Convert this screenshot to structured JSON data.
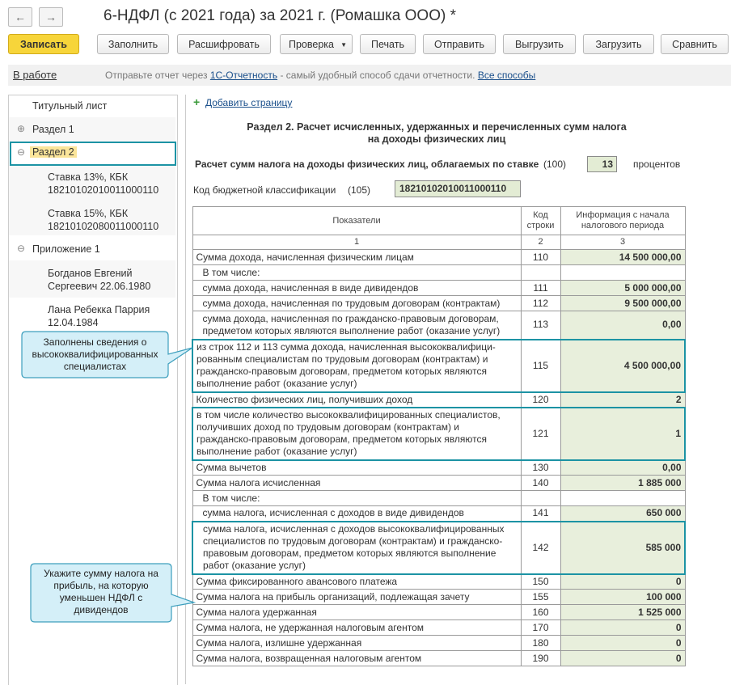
{
  "header": {
    "title": "6-НДФЛ (с 2021 года) за 2021 г. (Ромашка ООО) *"
  },
  "toolbar": {
    "buttons": [
      "Записать",
      "Заполнить",
      "Расшифровать",
      "Проверка",
      "Печать",
      "Отправить",
      "Выгрузить",
      "Загрузить",
      "Сравнить"
    ]
  },
  "infobar": {
    "status": "В работе",
    "text_before": "Отправьте отчет через",
    "link": "1С-Отчетность",
    "text_after": "- самый удобный способ сдачи отчетности.",
    "link_all": "Все способы"
  },
  "sidebar": {
    "items": [
      "Титульный лист",
      "Раздел 1",
      "Раздел 2",
      "Ставка 13%, КБК 18210102010011000110",
      "Ставка 15%, КБК 18210102080011000110",
      "Приложение 1",
      "Богданов Евгений Сергеевич 22.06.1980",
      "Лана Ребекка Паррия 12.04.1984"
    ]
  },
  "callouts": [
    "Заполнены сведения о\nвысококвалифицированных\nспециалистах",
    "Укажите сумму налога на\nприбыль, на которую\nуменьшен НДФЛ с\nдивидендов"
  ],
  "content": {
    "add_page": "Добавить страницу",
    "section_title": "Раздел 2. Расчет исчисленных, удержанных и перечисленных сумм налога\nна доходы физических лиц",
    "rate_label": "Расчет сумм налога на доходы физических лиц, облагаемых по ставке",
    "rate_code": "(100)",
    "rate_value": "13",
    "rate_unit": "процентов",
    "kbk_label": "Код бюджетной классификации",
    "kbk_code": "(105)",
    "kbk_value": "18210102010011000110"
  },
  "table": {
    "headers": [
      "Показатели",
      "Код\nстроки",
      "Информация с начала\nналогового периода"
    ],
    "numbers": [
      "1",
      "2",
      "3"
    ],
    "rows": [
      {
        "label": "Сумма дохода, начисленная физическим лицам",
        "code": "110",
        "value": "14 500 000,00"
      },
      {
        "label": "В том числе:"
      },
      {
        "label": "сумма дохода, начисленная в виде дивидендов",
        "code": "111",
        "value": "5 000 000,00"
      },
      {
        "label": "сумма дохода, начисленная по трудовым договорам (контрактам)",
        "code": "112",
        "value": "9 500 000,00"
      },
      {
        "label": "сумма дохода, начисленная по гражданско-правовым договорам,\nпредметом которых являются выполнение работ (оказание услуг)",
        "code": "113",
        "value": "0,00"
      },
      {
        "label": "из строк 112 и 113 сумма дохода, начисленная высококвалифици-\nрованным специалистам по трудовым договорам (контрактам) и\nгражданско-правовым договорам, предметом которых являются\nвыполнение работ (оказание услуг)",
        "code": "115",
        "value": "4 500 000,00"
      },
      {
        "label": "Количество физических лиц, получивших доход",
        "code": "120",
        "value": "2"
      },
      {
        "label": "в том числе количество высококвалифицированных специалистов,\nполучивших доход по трудовым договорам (контрактам) и\nгражданско-правовым договорам, предметом которых являются\nвыполнение работ (оказание услуг)",
        "code": "121",
        "value": "1"
      },
      {
        "label": "Сумма вычетов",
        "code": "130",
        "value": "0,00"
      },
      {
        "label": "Сумма налога исчисленная",
        "code": "140",
        "value": "1 885 000"
      },
      {
        "label": "В том числе:"
      },
      {
        "label": "сумма налога, исчисленная с доходов в виде дивидендов",
        "code": "141",
        "value": "650 000"
      },
      {
        "label": "сумма налога, исчисленная с доходов высококвалифицированных\nспециалистов по трудовым договорам (контрактам) и гражданско-\nправовым договорам, предметом которых являются выполнение\nработ (оказание услуг)",
        "code": "142",
        "value": "585 000"
      },
      {
        "label": "Сумма фиксированного авансового платежа",
        "code": "150",
        "value": "0"
      },
      {
        "label": "Сумма налога на прибыль организаций, подлежащая зачету",
        "code": "155",
        "value": "100 000"
      },
      {
        "label": "Сумма налога удержанная",
        "code": "160",
        "value": "1 525 000"
      },
      {
        "label": "Сумма налога, не удержанная налоговым агентом",
        "code": "170",
        "value": "0"
      },
      {
        "label": "Сумма налога, излишне удержанная",
        "code": "180",
        "value": "0"
      },
      {
        "label": "Сумма налога, возвращенная налоговым агентом",
        "code": "190",
        "value": "0"
      }
    ]
  }
}
